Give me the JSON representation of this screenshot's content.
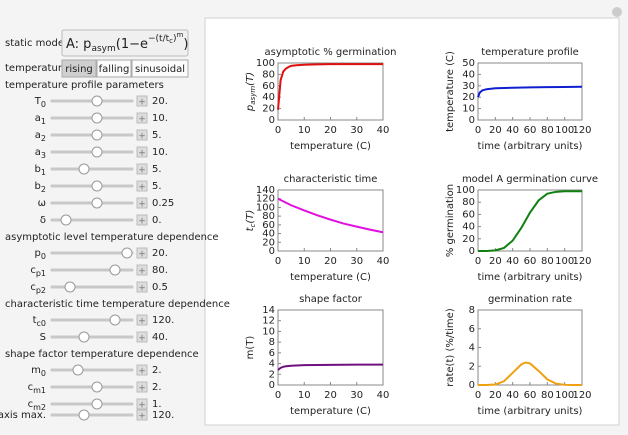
{
  "controls": {
    "static_model_label": "static model",
    "static_model": [
      "A: p",
      "asym",
      "(1−e",
      "−(t/t",
      "c",
      ")",
      "m",
      ")"
    ],
    "temperature_label": "temperature",
    "temperature_options": [
      "rising",
      "falling",
      "sinusoidal"
    ],
    "sections": [
      {
        "title": "temperature profile parameters",
        "sliders": [
          {
            "label": "T",
            "sub": "0",
            "value": "20."
          },
          {
            "label": "a",
            "sub": "1",
            "value": "10."
          },
          {
            "label": "a",
            "sub": "2",
            "value": "5."
          },
          {
            "label": "a",
            "sub": "3",
            "value": "10."
          },
          {
            "label": "b",
            "sub": "1",
            "value": "5."
          },
          {
            "label": "b",
            "sub": "2",
            "value": "5."
          },
          {
            "label": "ω",
            "value": "0.25"
          },
          {
            "label": "δ",
            "value": "0."
          }
        ]
      },
      {
        "title": "asymptotic level temperature dependence",
        "sliders": [
          {
            "label": "p",
            "sub": "0",
            "value": "20."
          },
          {
            "label": "c",
            "sub": "p1",
            "value": "80."
          },
          {
            "label": "c",
            "sub": "p2",
            "value": "0.5"
          }
        ]
      },
      {
        "title": "characteristic time temperature dependence",
        "sliders": [
          {
            "label": "t",
            "sub": "c0",
            "value": "120."
          },
          {
            "label": "S",
            "value": "40."
          }
        ]
      },
      {
        "title": "shape factor temperature dependence",
        "sliders": [
          {
            "label": "m",
            "sub": "0",
            "value": "2."
          },
          {
            "label": "c",
            "sub": "m1",
            "value": "2."
          },
          {
            "label": "c",
            "sub": "m2",
            "value": "1."
          }
        ]
      }
    ],
    "t_axis": {
      "label": "t axis max.",
      "value": "120."
    }
  },
  "chart_data": [
    {
      "type": "line",
      "title": "asymptotic % germination",
      "xlabel": "temperature (C)",
      "ylabel": {
        "text": "p",
        "sub": "asym",
        "suffix": "(T)"
      },
      "xlim": [
        0,
        40
      ],
      "ylim": [
        0,
        100
      ],
      "xticks": [
        0,
        10,
        20,
        30,
        40
      ],
      "yticks": [
        0,
        20,
        40,
        60,
        80,
        100
      ],
      "series": [
        {
          "color": "#e01010",
          "x": [
            0,
            1,
            2,
            3,
            4,
            5,
            7,
            10,
            15,
            20,
            30,
            40
          ],
          "values": [
            18,
            70,
            85,
            90,
            93,
            95,
            96,
            97,
            97.5,
            98,
            98,
            98
          ]
        }
      ]
    },
    {
      "type": "line",
      "title": "temperature profile",
      "xlabel": "time (arbitrary units)",
      "ylabel": "temperature (C)",
      "xlim": [
        0,
        120
      ],
      "ylim": [
        0,
        50
      ],
      "xticks": [
        0,
        20,
        40,
        60,
        80,
        100,
        120
      ],
      "yticks": [
        0,
        10,
        20,
        30,
        40,
        50
      ],
      "series": [
        {
          "color": "#1020d0",
          "x": [
            0,
            2,
            5,
            10,
            20,
            40,
            60,
            80,
            100,
            120
          ],
          "values": [
            20,
            24,
            26,
            27,
            27.8,
            28.3,
            28.6,
            28.8,
            29,
            29.2
          ]
        }
      ]
    },
    {
      "type": "line",
      "title": "characteristic time",
      "xlabel": "temperature (C)",
      "ylabel": {
        "text": "t",
        "sub": "c",
        "suffix": "(T)"
      },
      "xlim": [
        0,
        40
      ],
      "ylim": [
        0,
        140
      ],
      "xticks": [
        0,
        10,
        20,
        30,
        40
      ],
      "yticks": [
        0,
        20,
        40,
        60,
        80,
        100,
        120,
        140
      ],
      "series": [
        {
          "color": "#e010e0",
          "x": [
            0,
            5,
            10,
            15,
            20,
            25,
            30,
            35,
            40
          ],
          "values": [
            120,
            105,
            93,
            82,
            72,
            63,
            56,
            49,
            43
          ]
        }
      ]
    },
    {
      "type": "line",
      "title": "model A germination curve",
      "xlabel": "time (arbitrary units)",
      "ylabel": "% germination",
      "xlim": [
        0,
        120
      ],
      "ylim": [
        0,
        100
      ],
      "xticks": [
        0,
        20,
        40,
        60,
        80,
        100,
        120
      ],
      "yticks": [
        0,
        20,
        40,
        60,
        80,
        100
      ],
      "series": [
        {
          "color": "#108010",
          "x": [
            0,
            10,
            20,
            30,
            40,
            50,
            60,
            70,
            80,
            90,
            100,
            110,
            120
          ],
          "values": [
            0,
            0,
            1,
            5,
            17,
            38,
            63,
            83,
            94,
            97,
            98,
            98,
            98
          ]
        }
      ]
    },
    {
      "type": "line",
      "title": "shape factor",
      "xlabel": "temperature (C)",
      "ylabel": "m(T)",
      "xlim": [
        0,
        40
      ],
      "ylim": [
        0,
        14
      ],
      "xticks": [
        0,
        10,
        20,
        30,
        40
      ],
      "yticks": [
        0,
        2,
        4,
        6,
        8,
        10,
        12,
        14
      ],
      "series": [
        {
          "color": "#701080",
          "x": [
            0,
            1,
            2,
            3,
            5,
            10,
            20,
            30,
            40
          ],
          "values": [
            2.8,
            3.2,
            3.4,
            3.5,
            3.6,
            3.7,
            3.75,
            3.8,
            3.8
          ]
        }
      ]
    },
    {
      "type": "line",
      "title": "germination rate",
      "xlabel": "time (arbitrary units)",
      "ylabel": "rate(t) (%/time)",
      "xlim": [
        0,
        120
      ],
      "ylim": [
        0,
        8
      ],
      "xticks": [
        0,
        20,
        40,
        60,
        80,
        100,
        120
      ],
      "yticks": [
        0,
        2,
        4,
        6,
        8
      ],
      "series": [
        {
          "color": "#f0a010",
          "x": [
            0,
            10,
            20,
            30,
            40,
            50,
            55,
            60,
            70,
            80,
            90,
            100,
            110,
            120
          ],
          "values": [
            0,
            0,
            0.05,
            0.4,
            1.3,
            2.2,
            2.4,
            2.3,
            1.5,
            0.6,
            0.15,
            0.02,
            0,
            0
          ]
        }
      ]
    }
  ]
}
